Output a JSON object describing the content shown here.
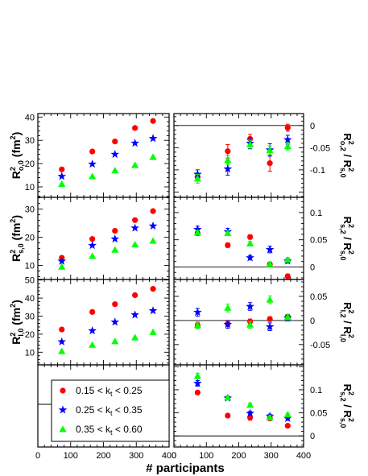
{
  "chart_data": {
    "type": "scatter",
    "xlabel": "# participants",
    "xlim": [
      0,
      400
    ],
    "xticks": [
      "0",
      "100",
      "200",
      "300",
      "400"
    ],
    "x": [
      73,
      166,
      235,
      296,
      351
    ],
    "series": [
      {
        "name": "0.15 < k_t < 0.25",
        "label": {
          "pre": "0.15 < k",
          "sub": "t",
          "post": " < 0.25"
        },
        "color": "#ff0000",
        "marker": "circle"
      },
      {
        "name": "0.25 < k_t < 0.35",
        "label": {
          "pre": "0.25 < k",
          "sub": "t",
          "post": " < 0.35"
        },
        "color": "#0000ff",
        "marker": "star"
      },
      {
        "name": "0.35 < k_t < 0.60",
        "label": {
          "pre": "0.35 < k",
          "sub": "t",
          "post": " < 0.60"
        },
        "color": "#00ff00",
        "marker": "triangle"
      }
    ],
    "panels": [
      {
        "id": "Ro0",
        "ylim": [
          5.5,
          41.5
        ],
        "yticks": [
          10,
          20,
          30,
          40
        ],
        "ytick_labels": [
          "10",
          "20",
          "30",
          "40"
        ],
        "ylabel": {
          "main": "R",
          "sup": "2",
          "sub": "o,0",
          "unit": " (fm",
          "unit_sup": "2",
          "unit_end": ")"
        },
        "values": [
          [
            17.5,
            25.2,
            29.5,
            35.3,
            38.3
          ],
          [
            14.5,
            19.8,
            24.0,
            28.8,
            30.8
          ],
          [
            11.2,
            14.5,
            17.0,
            19.3,
            22.8
          ]
        ],
        "errors": [
          [
            0,
            0,
            0,
            0,
            0
          ],
          [
            0,
            0,
            0,
            0,
            0
          ],
          [
            0,
            0,
            0,
            0,
            0
          ]
        ]
      },
      {
        "id": "Rs0",
        "ylim": [
          5.0,
          34.2
        ],
        "yticks": [
          10,
          20,
          30
        ],
        "ytick_labels": [
          "10",
          "20",
          "30"
        ],
        "ylabel": {
          "main": "R",
          "sup": "2",
          "sub": "s,0",
          "unit": " (fm",
          "unit_sup": "2",
          "unit_end": ")"
        },
        "values": [
          [
            12.7,
            19.4,
            22.3,
            26.1,
            29.3
          ],
          [
            11.5,
            17.1,
            19.4,
            23.3,
            24.0
          ],
          [
            9.5,
            13.3,
            15.5,
            17.4,
            18.7
          ]
        ],
        "errors": [
          [
            0,
            0,
            0,
            0,
            0
          ],
          [
            0,
            0,
            0,
            0,
            0
          ],
          [
            0,
            0,
            0,
            0,
            0
          ]
        ]
      },
      {
        "id": "Rl0",
        "ylim": [
          3.0,
          50.3
        ],
        "yticks": [
          10,
          20,
          30,
          40,
          50
        ],
        "ytick_labels": [
          "10",
          "20",
          "30",
          "40",
          "50"
        ],
        "ylabel": {
          "main": "R",
          "sup": "2",
          "sub": "l,0",
          "unit": " (fm",
          "unit_sup": "2",
          "unit_end": ")"
        },
        "values": [
          [
            22.6,
            32.3,
            36.6,
            41.6,
            45.1
          ],
          [
            15.8,
            21.9,
            26.7,
            30.7,
            33.0
          ],
          [
            10.5,
            14.0,
            16.0,
            18.1,
            21.1
          ]
        ],
        "errors": [
          [
            0,
            0,
            0,
            0,
            0
          ],
          [
            0,
            0,
            0,
            0,
            0
          ],
          [
            0,
            0,
            0,
            0,
            0
          ]
        ]
      },
      {
        "id": "Ro2",
        "ylim": [
          -0.162,
          0.027
        ],
        "yticks": [
          0,
          -0.05,
          -0.1
        ],
        "ytick_labels": [
          "0",
          "-0.05",
          "-0.1"
        ],
        "ref": 0,
        "ylabel": {
          "main": "R",
          "sup": "2",
          "sub": "o,2",
          "div": " / R",
          "sup2": "2",
          "sub2": "s,0"
        },
        "values": [
          [
            -0.116,
            -0.058,
            -0.03,
            -0.085,
            -0.005
          ],
          [
            -0.11,
            -0.098,
            -0.04,
            -0.055,
            -0.032
          ],
          [
            -0.12,
            -0.078,
            -0.043,
            -0.056,
            -0.047
          ]
        ],
        "errors": [
          [
            0.008,
            0.015,
            0.01,
            0.018,
            0.008
          ],
          [
            0.01,
            0.014,
            0.012,
            0.014,
            0.01
          ],
          [
            0.01,
            0.01,
            0.01,
            0.01,
            0.008
          ]
        ]
      },
      {
        "id": "Rs2",
        "ylim": [
          -0.023,
          0.128
        ],
        "yticks": [
          0.1,
          0.05,
          0
        ],
        "ytick_labels": [
          "0.1",
          "0.05",
          "0"
        ],
        "ref": 0,
        "ylabel": {
          "main": "R",
          "sup": "2",
          "sub": "s,2",
          "div": " / R",
          "sup2": "2",
          "sub2": "s,0"
        },
        "values": [
          [
            0.062,
            0.04,
            0.055,
            0.005,
            -0.017
          ],
          [
            0.069,
            0.065,
            0.017,
            0.032,
            0.011
          ],
          [
            0.063,
            0.062,
            0.043,
            0.005,
            0.013
          ]
        ],
        "errors": [
          [
            0.004,
            0.004,
            0.004,
            0.004,
            0.004
          ],
          [
            0.006,
            0.006,
            0.004,
            0.006,
            0.004
          ],
          [
            0.004,
            0.004,
            0.004,
            0.004,
            0.004
          ]
        ]
      },
      {
        "id": "Rl2",
        "ylim": [
          -0.092,
          0.085
        ],
        "yticks": [
          0.05,
          0,
          -0.05
        ],
        "ytick_labels": [
          "0.05",
          "0",
          "-0.05"
        ],
        "ref": 0,
        "ylabel": {
          "main": "R",
          "sup": "2",
          "sub": "l,2",
          "div": " / R",
          "sup2": "2",
          "sub2": "l,0"
        },
        "values": [
          [
            -0.01,
            -0.007,
            -0.002,
            0.003,
            0.008
          ],
          [
            0.017,
            -0.008,
            0.029,
            -0.013,
            0.005
          ],
          [
            -0.01,
            0.026,
            -0.009,
            0.043,
            0.007
          ]
        ],
        "errors": [
          [
            0.005,
            0.006,
            0.005,
            0.005,
            0.004
          ],
          [
            0.008,
            0.008,
            0.008,
            0.008,
            0.006
          ],
          [
            0.007,
            0.008,
            0.007,
            0.008,
            0.006
          ]
        ]
      },
      {
        "id": "Rs2b",
        "ylim": [
          -0.024,
          0.154
        ],
        "yticks": [
          0.1,
          0.05,
          0
        ],
        "ytick_labels": [
          "0.1",
          "0.05",
          "0"
        ],
        "ref": 0,
        "ylabel": {
          "main": "R",
          "sup": "2",
          "sub": "s,2",
          "div": " / R",
          "sup2": "2",
          "sub2": "s,0"
        },
        "values": [
          [
            0.094,
            0.044,
            0.04,
            0.039,
            0.022
          ],
          [
            0.114,
            0.082,
            0.049,
            0.043,
            0.038
          ],
          [
            0.13,
            0.083,
            0.067,
            0.04,
            0.046
          ]
        ],
        "errors": [
          [
            0.004,
            0.004,
            0.006,
            0.006,
            0.003
          ],
          [
            0.006,
            0.004,
            0.004,
            0.004,
            0.004
          ],
          [
            0.006,
            0.004,
            0.004,
            0.004,
            0.003
          ]
        ]
      }
    ]
  }
}
